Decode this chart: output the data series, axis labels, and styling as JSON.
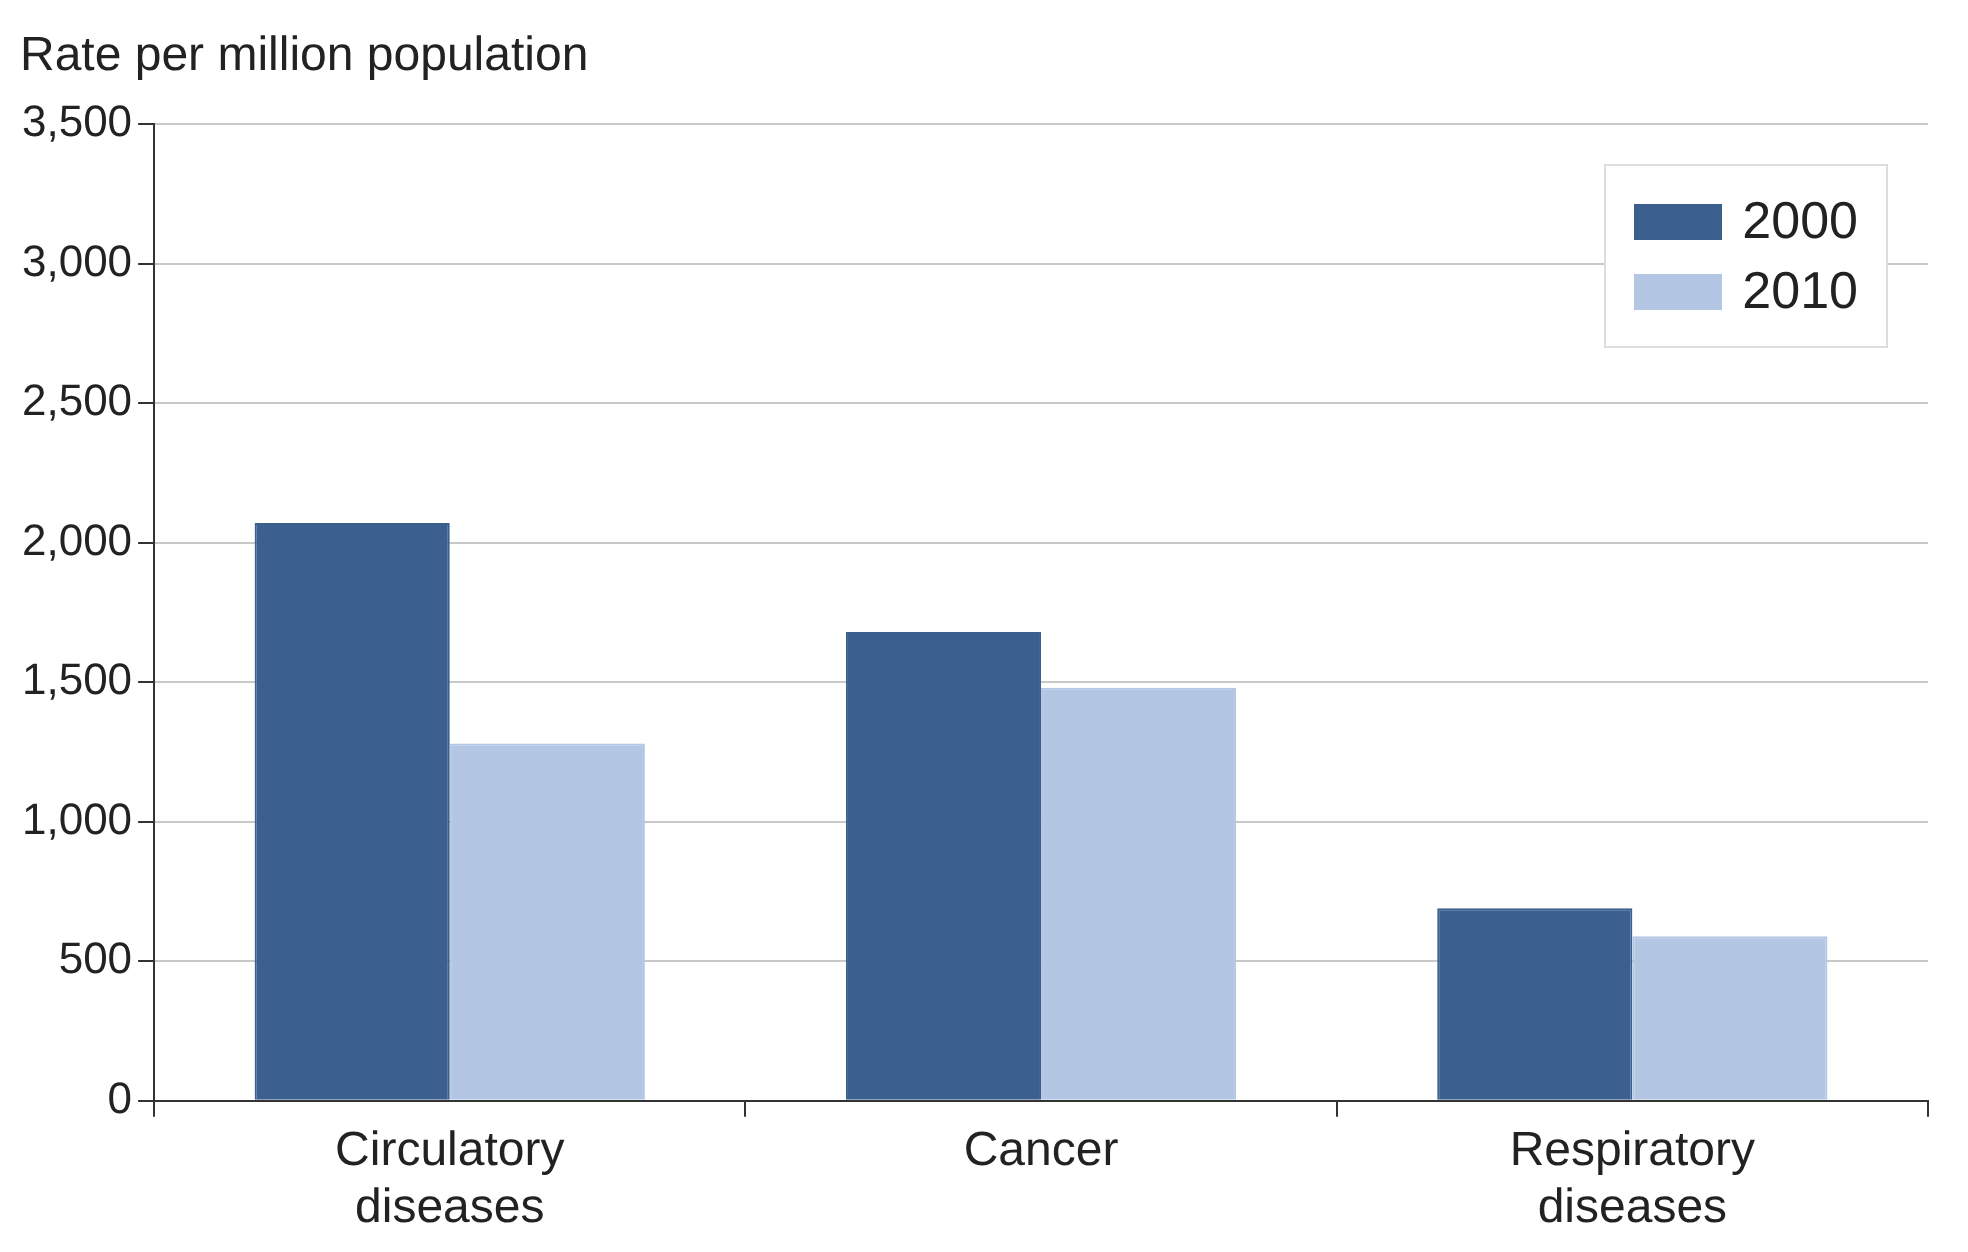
{
  "chart_data": {
    "type": "bar",
    "ylabel": "Rate per million population",
    "categories": [
      "Circulatory diseases",
      "Cancer",
      "Respiratory diseases"
    ],
    "series": [
      {
        "name": "2000",
        "color": "#3b5f8e",
        "values": [
          2070,
          1680,
          690
        ]
      },
      {
        "name": "2010",
        "color": "#b3c6e4",
        "values": [
          1280,
          1480,
          590
        ]
      }
    ],
    "ylim": [
      0,
      3500
    ],
    "yticks": [
      0,
      500,
      {
        "value": 1000,
        "label": "1,000"
      },
      {
        "value": 1500,
        "label": "1,500"
      },
      {
        "value": 2000,
        "label": "2,000"
      },
      {
        "value": 2500,
        "label": "2,500"
      },
      {
        "value": 3000,
        "label": "3,000"
      },
      {
        "value": 3500,
        "label": "3,500"
      }
    ],
    "grid": "y",
    "legend": "top right"
  }
}
